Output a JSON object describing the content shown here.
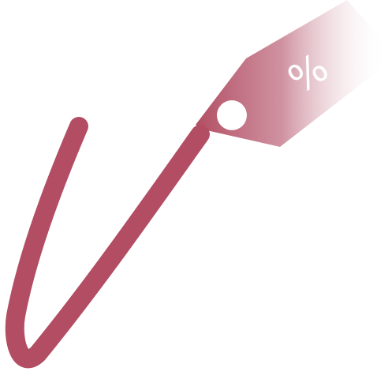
{
  "tag": {
    "symbol": "%",
    "icon": "price-tag-icon",
    "colors": {
      "primary": "#b24d63",
      "fade": "#ffffff"
    }
  },
  "check": {
    "icon": "checkmark-icon",
    "color": "#b24d63"
  }
}
